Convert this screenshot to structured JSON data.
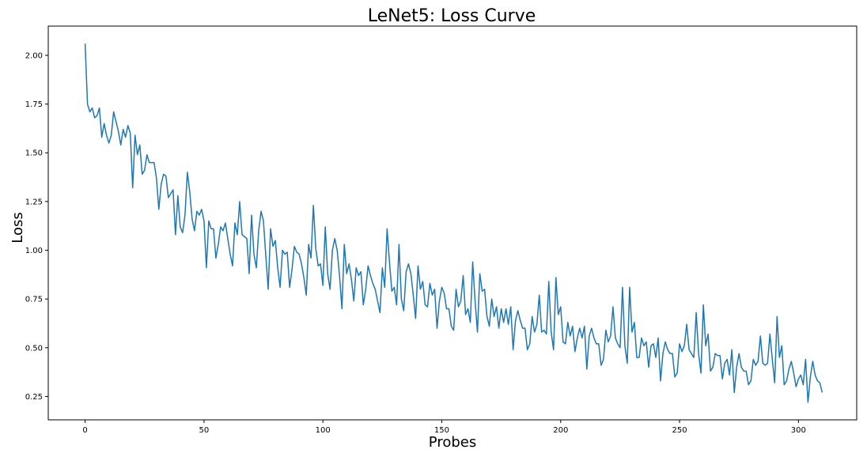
{
  "chart_data": {
    "type": "line",
    "title": "LeNet5: Loss Curve",
    "xlabel": "Probes",
    "ylabel": "Loss",
    "xlim": [
      -15.5,
      324.5
    ],
    "ylim": [
      0.13,
      2.15
    ],
    "xticks": [
      0,
      50,
      100,
      150,
      200,
      250,
      300
    ],
    "xtick_labels": [
      "0",
      "50",
      "100",
      "150",
      "200",
      "250",
      "300"
    ],
    "yticks": [
      0.25,
      0.5,
      0.75,
      1.0,
      1.25,
      1.5,
      1.75,
      2.0
    ],
    "ytick_labels": [
      "0.25",
      "0.50",
      "0.75",
      "1.00",
      "1.25",
      "1.50",
      "1.75",
      "2.00"
    ],
    "grid": false,
    "series": [
      {
        "color": "#1f77b4",
        "x_start": 0,
        "x_step": 1,
        "values": [
          2.06,
          1.75,
          1.71,
          1.73,
          1.68,
          1.69,
          1.73,
          1.58,
          1.65,
          1.59,
          1.55,
          1.59,
          1.71,
          1.66,
          1.61,
          1.54,
          1.62,
          1.58,
          1.64,
          1.6,
          1.32,
          1.59,
          1.49,
          1.54,
          1.39,
          1.41,
          1.49,
          1.45,
          1.45,
          1.45,
          1.37,
          1.21,
          1.34,
          1.39,
          1.38,
          1.27,
          1.29,
          1.31,
          1.08,
          1.28,
          1.12,
          1.09,
          1.18,
          1.4,
          1.3,
          1.16,
          1.1,
          1.2,
          1.18,
          1.21,
          1.15,
          0.91,
          1.15,
          1.11,
          1.11,
          0.96,
          1.03,
          1.12,
          1.1,
          1.14,
          1.06,
          0.98,
          0.92,
          1.14,
          1.08,
          1.25,
          1.08,
          1.07,
          1.06,
          0.88,
          1.18,
          0.98,
          0.91,
          1.1,
          1.2,
          1.15,
          0.97,
          0.8,
          1.11,
          1.02,
          1.05,
          0.91,
          0.81,
          1.0,
          0.98,
          0.99,
          0.81,
          0.9,
          1.02,
          0.99,
          0.98,
          0.93,
          0.86,
          0.77,
          1.03,
          0.96,
          1.23,
          1.01,
          0.92,
          0.93,
          0.82,
          1.12,
          0.88,
          0.8,
          1.0,
          1.06,
          1.0,
          0.87,
          0.7,
          1.03,
          0.88,
          0.93,
          0.85,
          0.74,
          0.91,
          0.87,
          0.89,
          0.72,
          0.8,
          0.92,
          0.87,
          0.83,
          0.8,
          0.74,
          0.68,
          0.91,
          0.81,
          1.11,
          0.94,
          0.79,
          0.81,
          0.72,
          1.03,
          0.75,
          0.69,
          0.89,
          0.93,
          0.88,
          0.77,
          0.65,
          0.92,
          0.8,
          0.84,
          0.72,
          0.71,
          0.83,
          0.77,
          0.8,
          0.6,
          0.74,
          0.81,
          0.78,
          0.7,
          0.7,
          0.61,
          0.59,
          0.8,
          0.71,
          0.74,
          0.87,
          0.67,
          0.7,
          0.63,
          0.94,
          0.74,
          0.58,
          0.88,
          0.79,
          0.8,
          0.66,
          0.61,
          0.75,
          0.66,
          0.71,
          0.6,
          0.7,
          0.63,
          0.7,
          0.62,
          0.71,
          0.49,
          0.64,
          0.69,
          0.64,
          0.6,
          0.6,
          0.49,
          0.52,
          0.66,
          0.58,
          0.62,
          0.77,
          0.58,
          0.59,
          0.57,
          0.84,
          0.58,
          0.49,
          0.86,
          0.67,
          0.71,
          0.53,
          0.52,
          0.63,
          0.56,
          0.61,
          0.48,
          0.55,
          0.6,
          0.55,
          0.61,
          0.39,
          0.56,
          0.6,
          0.55,
          0.52,
          0.52,
          0.41,
          0.44,
          0.59,
          0.53,
          0.56,
          0.71,
          0.55,
          0.52,
          0.5,
          0.81,
          0.51,
          0.42,
          0.81,
          0.58,
          0.63,
          0.45,
          0.45,
          0.55,
          0.51,
          0.53,
          0.4,
          0.51,
          0.52,
          0.45,
          0.55,
          0.33,
          0.47,
          0.53,
          0.49,
          0.47,
          0.47,
          0.35,
          0.37,
          0.52,
          0.48,
          0.51,
          0.62,
          0.49,
          0.47,
          0.45,
          0.68,
          0.47,
          0.37,
          0.72,
          0.51,
          0.57,
          0.38,
          0.4,
          0.47,
          0.46,
          0.46,
          0.34,
          0.42,
          0.44,
          0.36,
          0.49,
          0.27,
          0.4,
          0.47,
          0.4,
          0.38,
          0.38,
          0.31,
          0.33,
          0.44,
          0.41,
          0.43,
          0.56,
          0.42,
          0.41,
          0.42,
          0.57,
          0.44,
          0.32,
          0.66,
          0.45,
          0.51,
          0.31,
          0.33,
          0.39,
          0.43,
          0.37,
          0.3,
          0.34,
          0.36,
          0.31,
          0.44,
          0.22,
          0.35,
          0.43,
          0.36,
          0.33,
          0.32,
          0.27
        ]
      }
    ]
  }
}
